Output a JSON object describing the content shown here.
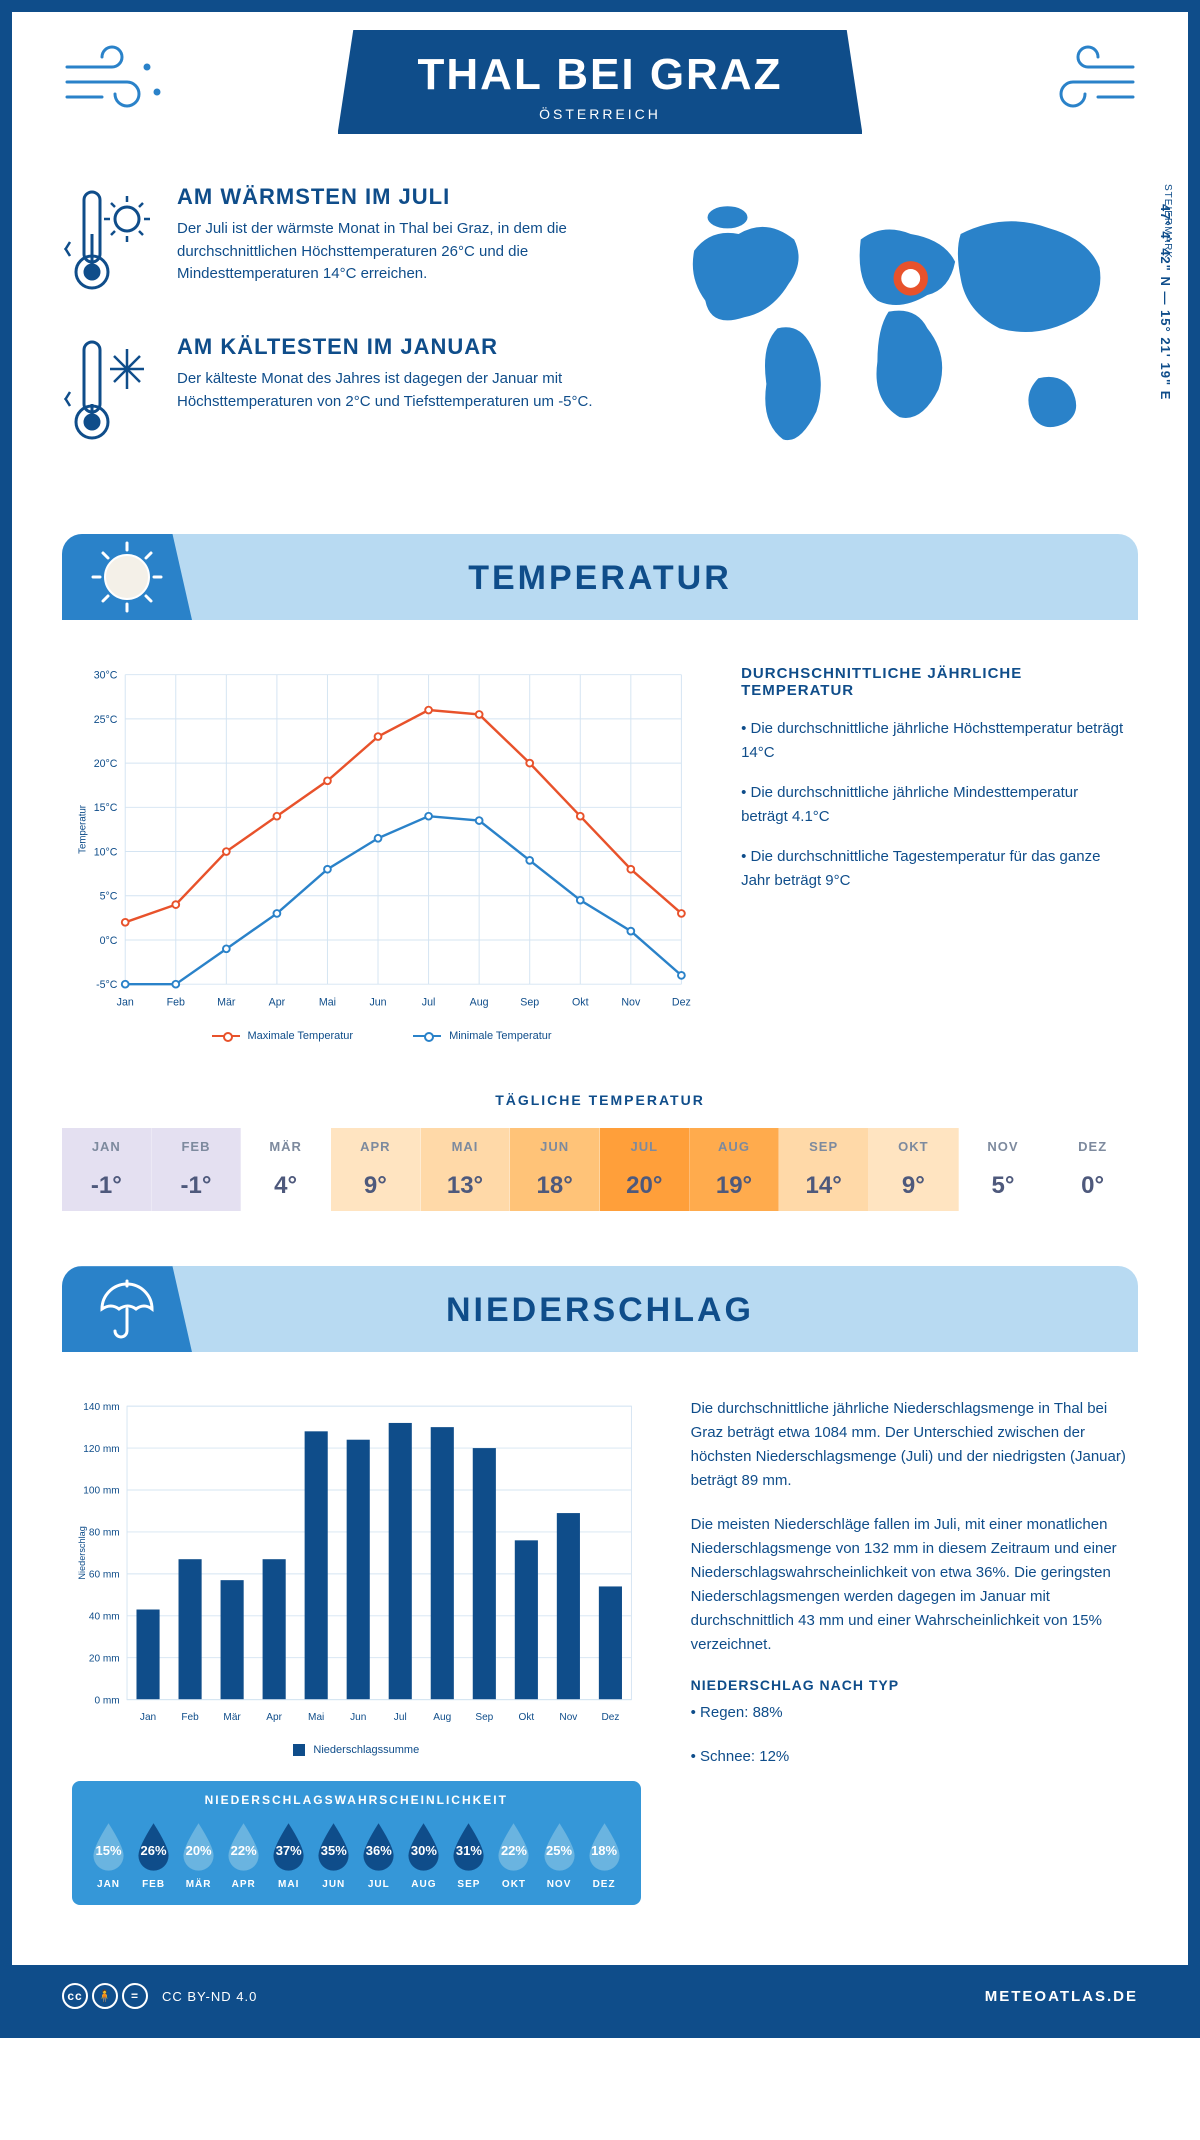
{
  "header": {
    "title": "THAL BEI GRAZ",
    "country": "ÖSTERREICH",
    "region": "STEIERMARK",
    "coords": "47° 4' 42\" N — 15° 21' 19\" E"
  },
  "facts": {
    "warmest": {
      "title": "AM WÄRMSTEN IM JULI",
      "text": "Der Juli ist der wärmste Monat in Thal bei Graz, in dem die durchschnittlichen Höchsttemperaturen 26°C und die Mindesttemperaturen 14°C erreichen."
    },
    "coldest": {
      "title": "AM KÄLTESTEN IM JANUAR",
      "text": "Der kälteste Monat des Jahres ist dagegen der Januar mit Höchsttemperaturen von 2°C und Tiefsttemperaturen um -5°C."
    }
  },
  "months": [
    "Jan",
    "Feb",
    "Mär",
    "Apr",
    "Mai",
    "Jun",
    "Jul",
    "Aug",
    "Sep",
    "Okt",
    "Nov",
    "Dez"
  ],
  "months_upper": [
    "JAN",
    "FEB",
    "MÄR",
    "APR",
    "MAI",
    "JUN",
    "JUL",
    "AUG",
    "SEP",
    "OKT",
    "NOV",
    "DEZ"
  ],
  "temperature": {
    "section_title": "TEMPERATUR",
    "chart": {
      "ylabel": "Temperatur",
      "ylim": [
        -5,
        30
      ],
      "ytick_step": 5,
      "ytick_suffix": "°C",
      "max_series": [
        2,
        4,
        10,
        14,
        18,
        23,
        26,
        25.5,
        20,
        14,
        8,
        3
      ],
      "min_series": [
        -5,
        -5,
        -1,
        3,
        8,
        11.5,
        14,
        13.5,
        9,
        4.5,
        1,
        -4
      ],
      "max_color": "#e8522b",
      "min_color": "#2a82c9",
      "grid_color": "#d4e4f2",
      "background_color": "#ffffff",
      "legend_max": "Maximale Temperatur",
      "legend_min": "Minimale Temperatur"
    },
    "info": {
      "heading": "DURCHSCHNITTLICHE JÄHRLICHE TEMPERATUR",
      "bullets": [
        "• Die durchschnittliche jährliche Höchsttemperatur beträgt 14°C",
        "• Die durchschnittliche jährliche Mindesttemperatur beträgt 4.1°C",
        "• Die durchschnittliche Tagestemperatur für das ganze Jahr beträgt 9°C"
      ]
    },
    "daily": {
      "heading": "TÄGLICHE TEMPERATUR",
      "values": [
        "-1°",
        "-1°",
        "4°",
        "9°",
        "13°",
        "18°",
        "20°",
        "19°",
        "14°",
        "9°",
        "5°",
        "0°"
      ],
      "cell_colors": [
        "#e4e0f1",
        "#e4e0f1",
        "#ffffff",
        "#ffe4c1",
        "#ffd9a8",
        "#ffc378",
        "#ff9f3a",
        "#ffab4d",
        "#ffd9a8",
        "#ffe4c1",
        "#ffffff",
        "#ffffff"
      ]
    }
  },
  "precip": {
    "section_title": "NIEDERSCHLAG",
    "chart": {
      "ylabel": "Niederschlag",
      "ylim": [
        0,
        140
      ],
      "ytick_step": 20,
      "ytick_suffix": " mm",
      "values": [
        43,
        67,
        57,
        67,
        128,
        124,
        132,
        130,
        120,
        76,
        89,
        54
      ],
      "bar_color": "#0f4d8a",
      "grid_color": "#d4e4f2",
      "legend": "Niederschlagssumme"
    },
    "text": {
      "p1": "Die durchschnittliche jährliche Niederschlagsmenge in Thal bei Graz beträgt etwa 1084 mm. Der Unterschied zwischen der höchsten Niederschlagsmenge (Juli) und der niedrigsten (Januar) beträgt 89 mm.",
      "p2": "Die meisten Niederschläge fallen im Juli, mit einer monatlichen Niederschlagsmenge von 132 mm in diesem Zeitraum und einer Niederschlagswahrscheinlichkeit von etwa 36%. Die geringsten Niederschlagsmengen werden dagegen im Januar mit durchschnittlich 43 mm und einer Wahrscheinlichkeit von 15% verzeichnet.",
      "type_heading": "NIEDERSCHLAG NACH TYP",
      "type_bullets": [
        "• Regen: 88%",
        "• Schnee: 12%"
      ]
    },
    "probability": {
      "heading": "NIEDERSCHLAGSWAHRSCHEINLICHKEIT",
      "values": [
        15,
        26,
        20,
        22,
        37,
        35,
        36,
        30,
        31,
        22,
        25,
        18
      ],
      "colors": [
        "#6ab4e0",
        "#0f4d8a",
        "#6ab4e0",
        "#6ab4e0",
        "#0f4d8a",
        "#0f4d8a",
        "#0f4d8a",
        "#0f4d8a",
        "#0f4d8a",
        "#6ab4e0",
        "#6ab4e0",
        "#6ab4e0"
      ]
    }
  },
  "footer": {
    "license": "CC BY-ND 4.0",
    "site": "METEOATLAS.DE"
  }
}
